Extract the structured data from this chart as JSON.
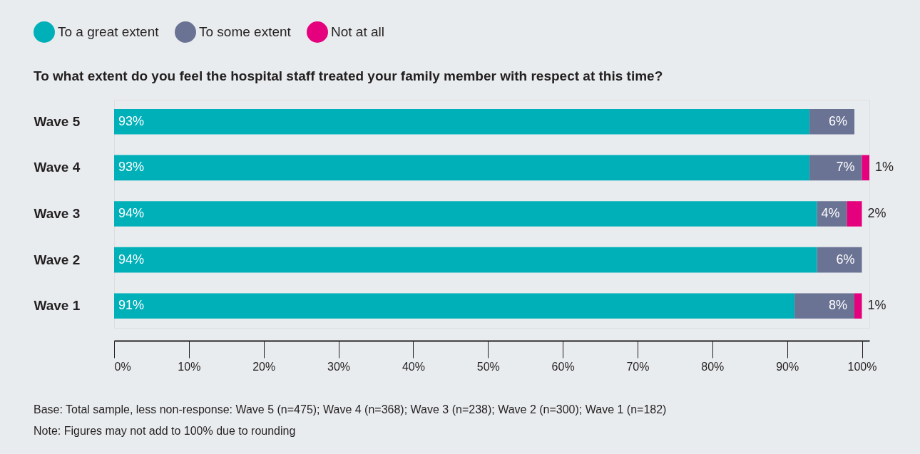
{
  "chart_data": {
    "type": "bar",
    "orientation": "horizontal",
    "stacked": true,
    "title": "To what extent do you feel the hospital staff treated your family member with respect at this time?",
    "categories": [
      "Wave 5",
      "Wave 4",
      "Wave 3",
      "Wave 2",
      "Wave 1"
    ],
    "series": [
      {
        "name": "To a great extent",
        "color": "#00b0b9",
        "values": [
          93,
          93,
          94,
          94,
          91
        ],
        "value_labels": [
          "93%",
          "93%",
          "94%",
          "94%",
          "91%"
        ]
      },
      {
        "name": "To some extent",
        "color": "#6b7394",
        "values": [
          6,
          7,
          4,
          6,
          8
        ],
        "value_labels": [
          "6%",
          "7%",
          "4%",
          "6%",
          "8%"
        ]
      },
      {
        "name": "Not at all",
        "color": "#e5007e",
        "values": [
          null,
          1,
          2,
          null,
          1
        ],
        "value_labels": [
          null,
          "1%",
          "2%",
          null,
          "1%"
        ]
      }
    ],
    "xlim": [
      0,
      101
    ],
    "xticks": [
      {
        "value": 0,
        "label": "0%"
      },
      {
        "value": 10,
        "label": "10%"
      },
      {
        "value": 20,
        "label": "20%"
      },
      {
        "value": 30,
        "label": "30%"
      },
      {
        "value": 40,
        "label": "40%"
      },
      {
        "value": 50,
        "label": "50%"
      },
      {
        "value": 60,
        "label": "60%"
      },
      {
        "value": 70,
        "label": "70%"
      },
      {
        "value": 80,
        "label": "80%"
      },
      {
        "value": 90,
        "label": "90%"
      },
      {
        "value": 100,
        "label": "100%"
      }
    ],
    "legend": "top",
    "grid": false,
    "annotations": [
      "Base: Total sample, less non-response: Wave 5 (n=475); Wave 4 (n=368); Wave 3 (n=238); Wave 2 (n=300); Wave 1 (n=182)",
      "Note: Figures may not add to 100% due to rounding"
    ]
  }
}
